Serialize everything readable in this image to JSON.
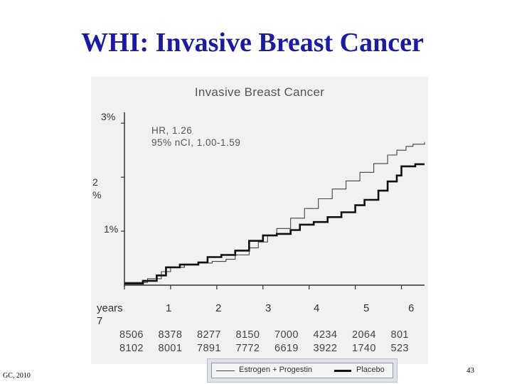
{
  "slide": {
    "title": "WHI:  Invasive Breast Cancer",
    "footer_left": "GC, 2010",
    "page_number": "43"
  },
  "chart_data": {
    "type": "line",
    "title": "Invasive Breast Cancer",
    "annotation": {
      "line1": "HR, 1.26",
      "line2": "95% nCI, 1.00-1.59"
    },
    "xlim": [
      0,
      6.5
    ],
    "ylim": [
      0,
      0.032
    ],
    "y_tick_labels": [
      {
        "value": 0.03,
        "label": "3%"
      },
      {
        "value": 0.02,
        "label": "2\n%"
      },
      {
        "value": 0.01,
        "label": "1%"
      }
    ],
    "x_tick_labels": [
      {
        "value": 0,
        "label": "years\n7"
      },
      {
        "value": 1,
        "label": "1"
      },
      {
        "value": 2,
        "label": "2"
      },
      {
        "value": 3,
        "label": "3"
      },
      {
        "value": 4,
        "label": "4"
      },
      {
        "value": 5,
        "label": "5"
      },
      {
        "value": 6,
        "label": "6"
      }
    ],
    "series": [
      {
        "name": "Estrogen + Progestin",
        "style": "thin",
        "color": "#444444",
        "x": [
          0,
          0.5,
          0.8,
          1.0,
          1.3,
          1.6,
          1.9,
          2.2,
          2.4,
          2.7,
          2.9,
          3.1,
          3.3,
          3.6,
          3.9,
          4.2,
          4.5,
          4.8,
          5.1,
          5.4,
          5.7,
          5.9,
          6.1,
          6.25,
          6.5
        ],
        "y": [
          0.0005,
          0.0012,
          0.0025,
          0.0033,
          0.0039,
          0.0041,
          0.0044,
          0.0048,
          0.0056,
          0.0069,
          0.008,
          0.0092,
          0.0105,
          0.0124,
          0.0142,
          0.016,
          0.0178,
          0.0193,
          0.0209,
          0.0225,
          0.0241,
          0.025,
          0.0257,
          0.0261,
          0.0265
        ]
      },
      {
        "name": "Placebo",
        "style": "thick",
        "color": "#111111",
        "x": [
          0,
          0.4,
          0.7,
          0.9,
          1.2,
          1.6,
          1.8,
          2.1,
          2.4,
          2.7,
          3.0,
          3.3,
          3.6,
          3.8,
          4.1,
          4.4,
          4.7,
          5.0,
          5.2,
          5.5,
          5.7,
          5.9,
          6.0,
          6.3,
          6.5
        ],
        "y": [
          0.0003,
          0.0008,
          0.0018,
          0.0033,
          0.0038,
          0.0042,
          0.0052,
          0.0056,
          0.0064,
          0.0082,
          0.0092,
          0.0095,
          0.0102,
          0.0112,
          0.0117,
          0.0126,
          0.0135,
          0.0148,
          0.0158,
          0.0175,
          0.0192,
          0.0203,
          0.022,
          0.0224,
          0.0224
        ]
      }
    ],
    "risk_table": {
      "estrogen_progestin": [
        "8506",
        "8378",
        "8277",
        "8150",
        "7000",
        "4234",
        "2064",
        "801"
      ],
      "placebo": [
        "8102",
        "8001",
        "7891",
        "7772",
        "6619",
        "3922",
        "1740",
        "523"
      ]
    },
    "legend": {
      "items": [
        "Estrogen + Progestin",
        "Placebo"
      ],
      "placement": "bottom"
    },
    "grid": false
  }
}
